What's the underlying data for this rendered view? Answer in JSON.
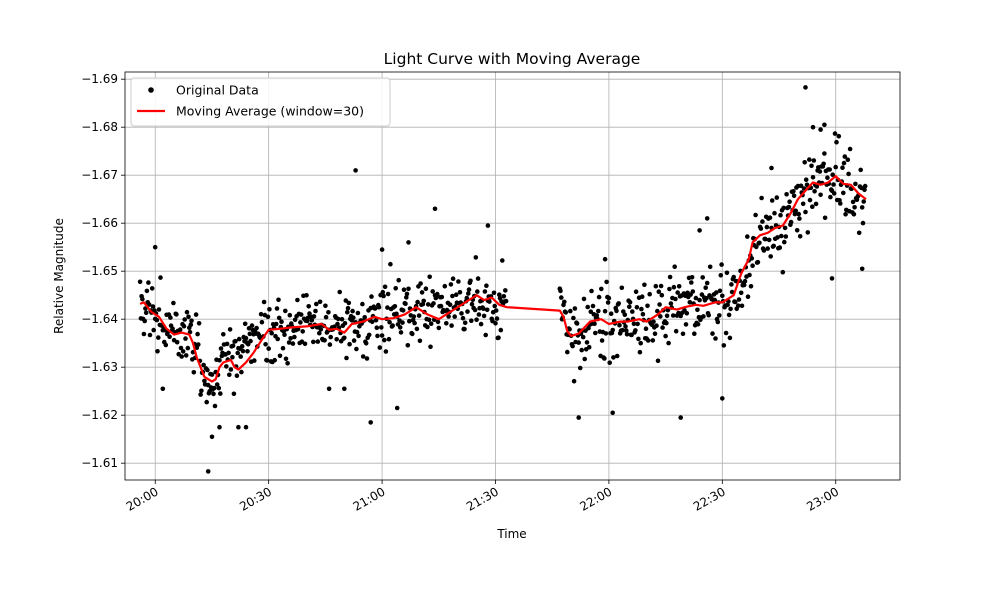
{
  "chart_data": {
    "type": "scatter",
    "title": "Light Curve with Moving Average",
    "xlabel": "Time",
    "ylabel": "Relative Magnitude",
    "y_inverted": true,
    "grid": true,
    "legend_position": "top-left",
    "xlim": [
      "19:52",
      "23:17"
    ],
    "ylim": [
      -1.6065,
      -1.6915
    ],
    "x_ticks": [
      "20:00",
      "20:30",
      "21:00",
      "21:30",
      "22:00",
      "22:30",
      "23:00"
    ],
    "y_ticks": [
      -1.69,
      -1.68,
      -1.67,
      -1.66,
      -1.65,
      -1.64,
      -1.63,
      -1.62,
      -1.61
    ],
    "y_tick_labels": [
      "−1.69",
      "−1.68",
      "−1.67",
      "−1.66",
      "−1.65",
      "−1.64",
      "−1.63",
      "−1.62",
      "−1.61"
    ],
    "series": [
      {
        "name": "Original Data",
        "kind": "scatter",
        "color": "#000000",
        "segments": [
          {
            "start": "19:56",
            "end": "21:33",
            "trend": [
              [
                "19:56",
                -1.643
              ],
              [
                "20:05",
                -1.637
              ],
              [
                "20:10",
                -1.636
              ],
              [
                "20:13",
                -1.627
              ],
              [
                "20:20",
                -1.632
              ],
              [
                "20:30",
                -1.638
              ],
              [
                "20:40",
                -1.639
              ],
              [
                "20:50",
                -1.6385
              ],
              [
                "21:00",
                -1.6405
              ],
              [
                "21:10",
                -1.642
              ],
              [
                "21:20",
                -1.643
              ],
              [
                "21:25",
                -1.644
              ],
              [
                "21:33",
                -1.643
              ]
            ],
            "spread": 0.0085
          },
          {
            "start": "21:47",
            "end": "23:08",
            "trend": [
              [
                "21:47",
                -1.642
              ],
              [
                "21:50",
                -1.637
              ],
              [
                "21:55",
                -1.6395
              ],
              [
                "22:05",
                -1.64
              ],
              [
                "22:15",
                -1.642
              ],
              [
                "22:28",
                -1.643
              ],
              [
                "22:34",
                -1.645
              ],
              [
                "22:40",
                -1.657
              ],
              [
                "22:47",
                -1.66
              ],
              [
                "22:53",
                -1.6685
              ],
              [
                "23:00",
                -1.6695
              ],
              [
                "23:08",
                -1.665
              ]
            ],
            "spread": 0.0095
          }
        ],
        "highlights": [
          [
            "20:14",
            -1.6083
          ],
          [
            "20:15",
            -1.6155
          ],
          [
            "20:17",
            -1.6175
          ],
          [
            "20:22",
            -1.6175
          ],
          [
            "20:24",
            -1.6175
          ],
          [
            "21:04",
            -1.6215
          ],
          [
            "20:57",
            -1.6185
          ],
          [
            "22:01",
            -1.6205
          ],
          [
            "21:52",
            -1.6195
          ],
          [
            "22:19",
            -1.6195
          ],
          [
            "20:53",
            -1.671
          ],
          [
            "21:14",
            -1.663
          ],
          [
            "21:28",
            -1.6595
          ],
          [
            "22:52",
            -1.6883
          ],
          [
            "22:54",
            -1.68
          ],
          [
            "22:56",
            -1.6795
          ],
          [
            "22:57",
            -1.6805
          ],
          [
            "22:43",
            -1.6715
          ],
          [
            "22:59",
            -1.6485
          ],
          [
            "23:07",
            -1.6505
          ],
          [
            "20:00",
            -1.655
          ],
          [
            "21:07",
            -1.656
          ],
          [
            "21:00",
            -1.6545
          ],
          [
            "21:59",
            -1.6525
          ],
          [
            "20:02",
            -1.6255
          ],
          [
            "20:46",
            -1.6255
          ],
          [
            "20:50",
            -1.6255
          ],
          [
            "22:24",
            -1.6585
          ],
          [
            "22:26",
            -1.661
          ],
          [
            "22:30",
            -1.6235
          ]
        ]
      },
      {
        "name": "Moving Average (window=30)",
        "kind": "line",
        "color": "#ff0000",
        "x": [
          "19:56",
          "19:57",
          "19:59",
          "20:01",
          "20:03",
          "20:05",
          "20:07",
          "20:09",
          "20:10",
          "20:11",
          "20:13",
          "20:14",
          "20:15",
          "20:16",
          "20:17",
          "20:18",
          "20:20",
          "20:21",
          "20:22",
          "20:24",
          "20:26",
          "20:28",
          "20:30",
          "20:33",
          "20:36",
          "20:40",
          "20:44",
          "20:46",
          "20:48",
          "20:50",
          "20:52",
          "20:55",
          "20:58",
          "21:00",
          "21:03",
          "21:06",
          "21:09",
          "21:12",
          "21:15",
          "21:18",
          "21:20",
          "21:23",
          "21:25",
          "21:27",
          "21:29",
          "21:31",
          "21:33",
          "21:47",
          "21:48",
          "21:49",
          "21:50",
          "21:52",
          "21:55",
          "21:58",
          "22:00",
          "22:03",
          "22:05",
          "22:08",
          "22:10",
          "22:13",
          "22:15",
          "22:18",
          "22:20",
          "22:23",
          "22:25",
          "22:28",
          "22:30",
          "22:33",
          "22:35",
          "22:37",
          "22:38",
          "22:40",
          "22:42",
          "22:44",
          "22:46",
          "22:48",
          "22:50",
          "22:52",
          "22:54",
          "22:56",
          "22:58",
          "23:00",
          "23:02",
          "23:04",
          "23:06",
          "23:08"
        ],
        "y": [
          -1.6432,
          -1.6435,
          -1.6415,
          -1.6405,
          -1.638,
          -1.6368,
          -1.6372,
          -1.6368,
          -1.635,
          -1.632,
          -1.628,
          -1.6275,
          -1.627,
          -1.6275,
          -1.63,
          -1.631,
          -1.6315,
          -1.63,
          -1.6295,
          -1.631,
          -1.633,
          -1.6355,
          -1.6378,
          -1.638,
          -1.6383,
          -1.6385,
          -1.639,
          -1.6378,
          -1.638,
          -1.6372,
          -1.639,
          -1.6395,
          -1.6405,
          -1.64,
          -1.6402,
          -1.641,
          -1.6425,
          -1.641,
          -1.64,
          -1.6415,
          -1.6425,
          -1.644,
          -1.645,
          -1.644,
          -1.6445,
          -1.643,
          -1.6425,
          -1.6418,
          -1.6405,
          -1.6375,
          -1.6365,
          -1.637,
          -1.6395,
          -1.64,
          -1.639,
          -1.6395,
          -1.6395,
          -1.64,
          -1.6395,
          -1.641,
          -1.6425,
          -1.642,
          -1.6425,
          -1.643,
          -1.6428,
          -1.6435,
          -1.6435,
          -1.645,
          -1.6495,
          -1.6525,
          -1.656,
          -1.6575,
          -1.658,
          -1.659,
          -1.6595,
          -1.662,
          -1.665,
          -1.6668,
          -1.6685,
          -1.668,
          -1.6685,
          -1.6698,
          -1.6682,
          -1.668,
          -1.6662,
          -1.665
        ]
      }
    ]
  }
}
